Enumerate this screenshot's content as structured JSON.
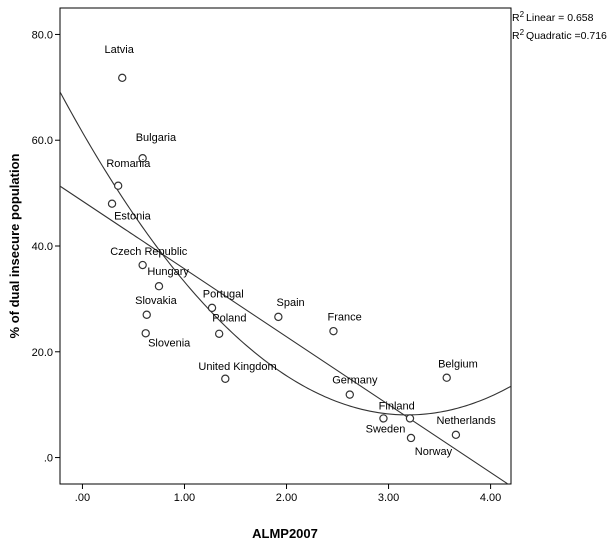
{
  "chart_data": {
    "type": "scatter",
    "title": "",
    "xlabel": "ALMP2007",
    "ylabel": "% of dual insecure population",
    "xlim": [
      -0.22,
      4.2
    ],
    "ylim": [
      -5,
      85
    ],
    "xticks": [
      {
        "value": 0,
        "label": ".00"
      },
      {
        "value": 1,
        "label": "1.00"
      },
      {
        "value": 2,
        "label": "2.00"
      },
      {
        "value": 3,
        "label": "3.00"
      },
      {
        "value": 4,
        "label": "4.00"
      }
    ],
    "yticks": [
      {
        "value": 0,
        "label": ".0"
      },
      {
        "value": 20,
        "label": "20.0"
      },
      {
        "value": 40,
        "label": "40.0"
      },
      {
        "value": 60,
        "label": "60.0"
      },
      {
        "value": 80,
        "label": "80.0"
      }
    ],
    "grid": false,
    "points": [
      {
        "label": "Latvia",
        "x": 0.39,
        "y": 71.8,
        "lx": 0.36,
        "ly": 76.5,
        "anchor": "middle"
      },
      {
        "label": "Bulgaria",
        "x": 0.59,
        "y": 56.6,
        "lx": 0.72,
        "ly": 59.9,
        "anchor": "middle"
      },
      {
        "label": "Romania",
        "x": 0.35,
        "y": 51.4,
        "lx": 0.45,
        "ly": 54.9,
        "anchor": "middle"
      },
      {
        "label": "Estonia",
        "x": 0.29,
        "y": 48.0,
        "lx": 0.49,
        "ly": 45.0,
        "anchor": "middle"
      },
      {
        "label": "Czech Republic",
        "x": 0.59,
        "y": 36.4,
        "lx": 0.65,
        "ly": 38.3,
        "anchor": "middle"
      },
      {
        "label": "Hungary",
        "x": 0.75,
        "y": 32.4,
        "lx": 0.84,
        "ly": 34.5,
        "anchor": "middle"
      },
      {
        "label": "Slovakia",
        "x": 0.63,
        "y": 27.0,
        "lx": 0.72,
        "ly": 29.0,
        "anchor": "middle"
      },
      {
        "label": "Slovenia",
        "x": 0.62,
        "y": 23.5,
        "lx": 0.85,
        "ly": 21.0,
        "anchor": "middle"
      },
      {
        "label": "Portugal",
        "x": 1.27,
        "y": 28.3,
        "lx": 1.38,
        "ly": 30.3,
        "anchor": "middle"
      },
      {
        "label": "Poland",
        "x": 1.34,
        "y": 23.4,
        "lx": 1.44,
        "ly": 25.7,
        "anchor": "middle"
      },
      {
        "label": "Spain",
        "x": 1.92,
        "y": 26.6,
        "lx": 2.04,
        "ly": 28.7,
        "anchor": "middle"
      },
      {
        "label": "France",
        "x": 2.46,
        "y": 23.9,
        "lx": 2.57,
        "ly": 25.9,
        "anchor": "middle"
      },
      {
        "label": "United Kingdom",
        "x": 1.4,
        "y": 14.9,
        "lx": 1.52,
        "ly": 16.6,
        "anchor": "middle"
      },
      {
        "label": "Germany",
        "x": 2.62,
        "y": 11.9,
        "lx": 2.67,
        "ly": 14.0,
        "anchor": "middle"
      },
      {
        "label": "Belgium",
        "x": 3.57,
        "y": 15.1,
        "lx": 3.68,
        "ly": 17.0,
        "anchor": "middle"
      },
      {
        "label": "Finland",
        "x": 3.21,
        "y": 7.4,
        "lx": 3.08,
        "ly": 9.1,
        "anchor": "middle"
      },
      {
        "label": "Sweden",
        "x": 2.95,
        "y": 7.4,
        "lx": 2.97,
        "ly": 4.7,
        "anchor": "middle"
      },
      {
        "label": "Norway",
        "x": 3.22,
        "y": 3.7,
        "lx": 3.44,
        "ly": 0.5,
        "anchor": "middle"
      },
      {
        "label": "Netherlands",
        "x": 3.66,
        "y": 4.3,
        "lx": 3.76,
        "ly": 6.3,
        "anchor": "middle"
      }
    ],
    "fits": {
      "linear": {
        "r2_label": "Linear = 0.658",
        "intercept": 48.5,
        "slope": -12.83
      },
      "quadratic": {
        "r2_label": "Quadratic =0.716",
        "a": 61.5,
        "b": -33.55,
        "c": 5.266
      }
    }
  }
}
